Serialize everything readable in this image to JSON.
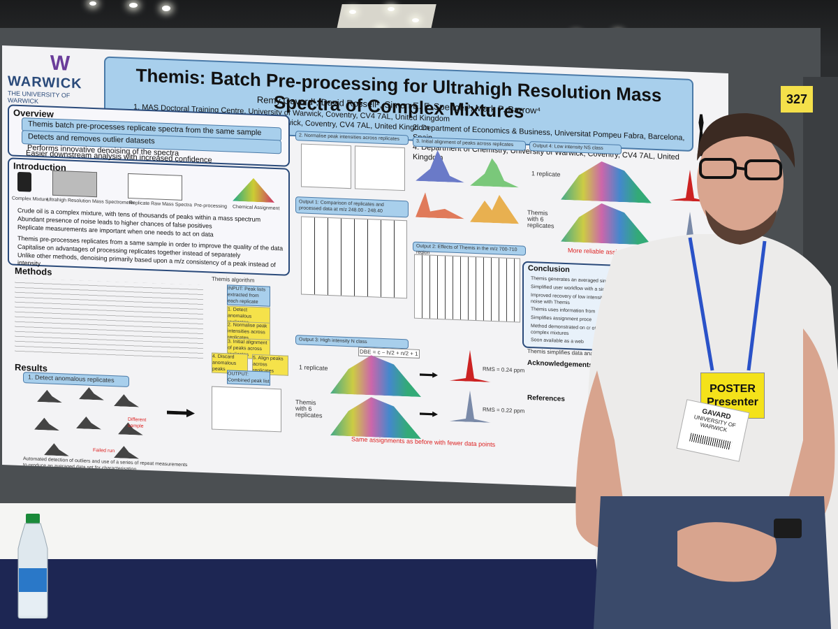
{
  "booth_number": "327",
  "poster": {
    "logo": {
      "name": "WARWICK",
      "sub": "THE UNIVERSITY OF WARWICK"
    },
    "title": "Themis: Batch Pre-processing for Ultrahigh Resolution Mass Spectra of Complex Mixtures",
    "authors": "Remy Gavard¹, David Rossell², Simon E. F. Spencer³, Mark P. Barrow⁴",
    "affiliations": [
      "1. MAS Doctoral Training Centre, University of Warwick, Coventry, CV4 7AL, United Kingdom",
      "3. Department of Statistics, University of Warwick, Coventry, CV4 7AL, United Kingdom"
    ],
    "affiliations2": [
      "2. Department of Economics & Business, Universitat Pompeu Fabra, Barcelona, Spain",
      "4. Department of Chemistry, University of Warwick, Coventry, CV4 7AL, United Kingdom"
    ],
    "overview": {
      "heading": "Overview",
      "items": [
        "Themis batch pre-processes replicate spectra from the same sample",
        "Detects and removes outlier datasets",
        "Performs innovative denoising of the spectra",
        "Easier downstream analysis with increased confidence"
      ]
    },
    "introduction": {
      "heading": "Introduction",
      "flow": [
        "Complex Mixture",
        "Ultrahigh Resolution Mass Spectrometer",
        "Replicate Raw Mass Spectra",
        "Pre-processing",
        "Chemical Assignment"
      ],
      "items": [
        "Crude oil is a complex mixture, with tens of thousands of peaks within a mass spectrum",
        "Abundant presence of noise leads to higher chances of false positives",
        "Replicate measurements are important when one needs to act on data",
        "Themis pre-processes replicates from a same sample in order to improve the quality of the data",
        "Capitalise on advantages of processing replicates together instead of separately",
        "Unlike other methods, denoising primarily based upon a m/z consistency of a peak instead of intensity"
      ]
    },
    "methods": {
      "heading": "Methods",
      "algorithm_title": "Themis algorithm",
      "algorithm_steps": [
        "INPUT: Peak lists extracted from each replicate",
        "1. Detect anomalous replicates",
        "2. Normalise peak intensities across replicates",
        "3. Initial alignment of peaks across replicates",
        "4. Discard anomalous peaks",
        "5. Align peaks across replicates",
        "OUTPUT: Combined peak list"
      ]
    },
    "results": {
      "heading": "Results",
      "step1": "1. Detect anomalous replicates",
      "step1_caption": "Automated detection of outliers and use of a series of repeat measurements to produce an averaged data set for characterisation",
      "different_sample": "Different sample",
      "failed_run": "Failed run",
      "step2": "2. Normalise peak intensities across replicates",
      "step3": "3. Initial alignment of peaks across replicates",
      "output1": "Output 1: Comparison of replicates and processed data at m/z 248.00 - 248.40",
      "output2": "Output 2: Effects of Themis in the m/z 700-710 region",
      "output3": "Output 3: High intensity N class",
      "output4": "Output 4: Low intensity NS class",
      "one_replicate": "1 replicate",
      "six_replicates": "Themis with 6 replicates",
      "rms1": "RMS = 0.24 ppm",
      "rms2": "RMS = 0.22 ppm",
      "dbe": "DBE = c − h/2 + n/2 + 1",
      "same_assignments": "Same assignments as before with fewer data points",
      "more_reliable": "More reliable assignments and improved"
    },
    "conclusion": {
      "heading": "Conclusion",
      "items": [
        "Themis generates an averaged single",
        "Simplified user workflow with a sin",
        "Improved recovery of low intensity the noise with Themis",
        "Themis uses information from",
        "Simplifies assignment proce",
        "Method demonstrated on cr other complex mixtures",
        "Soon available as a web"
      ],
      "summary": "Themis simplifies data analys"
    },
    "acknowledgements": {
      "heading": "Acknowledgements"
    },
    "references": {
      "heading": "References"
    }
  },
  "badge": {
    "line1": "POSTER",
    "line2": "Presenter"
  },
  "namecard": {
    "name": "GAVARD",
    "org": "UNIVERSITY OF WARWICK"
  }
}
